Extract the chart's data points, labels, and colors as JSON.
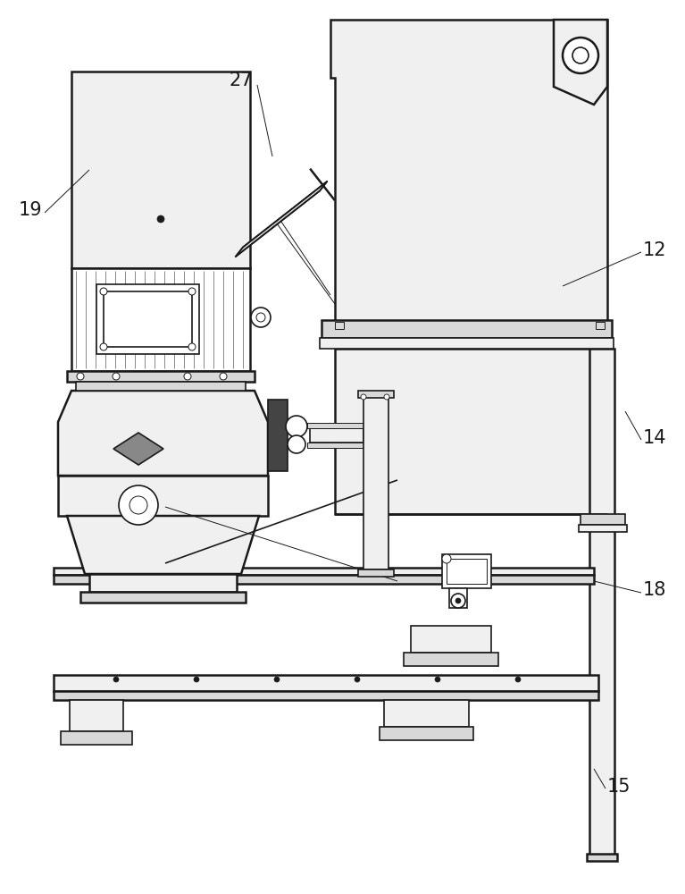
{
  "bg_color": "#ffffff",
  "lc": "#1a1a1a",
  "lw_thin": 0.7,
  "lw_med": 1.2,
  "lw_thick": 1.8,
  "label_fontsize": 15,
  "gray_light": "#f0f0f0",
  "gray_mid": "#d8d8d8",
  "gray_dark": "#888888",
  "gray_vdark": "#444444",
  "white": "#ffffff"
}
